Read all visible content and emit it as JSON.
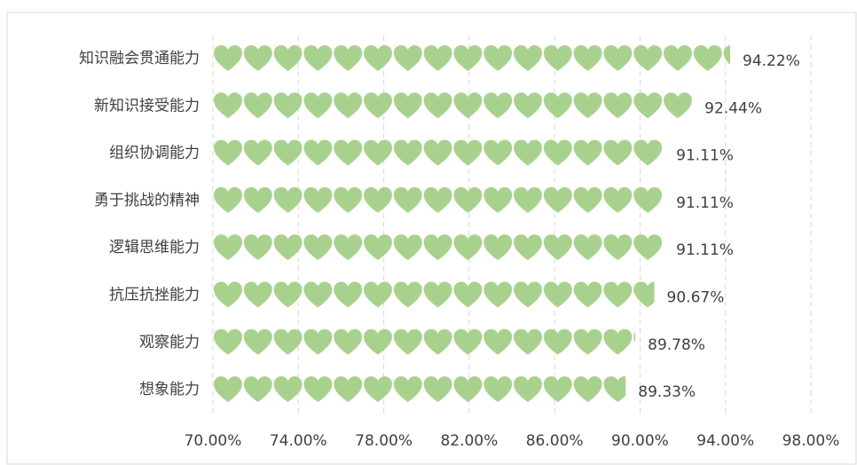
{
  "chart_data": {
    "type": "pictograph-bar",
    "categories": [
      "知识融会贯通能力",
      "新知识接受能力",
      "组织协调能力",
      "勇于挑战的精神",
      "逻辑思维能力",
      "抗压抗挫能力",
      "观察能力",
      "想象能力"
    ],
    "values": [
      94.22,
      92.44,
      91.11,
      91.11,
      91.11,
      90.67,
      89.78,
      89.33
    ],
    "value_labels": [
      "94.22%",
      "92.44%",
      "91.11%",
      "91.11%",
      "91.11%",
      "90.67%",
      "89.78%",
      "89.33%"
    ],
    "color": "#a9d18e",
    "xlim": [
      70,
      98
    ],
    "xticks": [
      {
        "value": 70,
        "label": "70.00%"
      },
      {
        "value": 74,
        "label": "74.00%"
      },
      {
        "value": 78,
        "label": "78.00%"
      },
      {
        "value": 82,
        "label": "82.00%"
      },
      {
        "value": 86,
        "label": "86.00%"
      },
      {
        "value": 90,
        "label": "90.00%"
      },
      {
        "value": 94,
        "label": "94.00%"
      },
      {
        "value": 98,
        "label": "98.00%"
      }
    ],
    "grid": true
  }
}
